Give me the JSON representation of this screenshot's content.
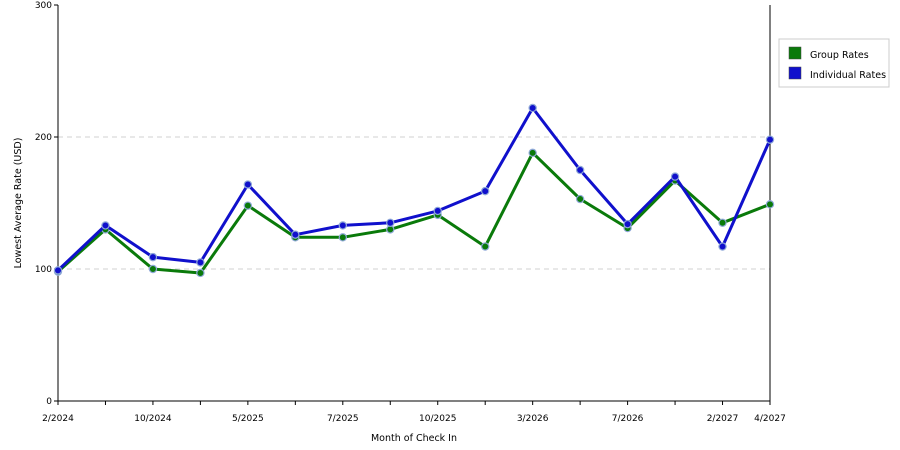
{
  "chart_data": {
    "type": "line",
    "xlabel": "Month of Check In",
    "ylabel": "Lowest Average Rate (USD)",
    "ylim": [
      0,
      300
    ],
    "yticks": [
      0,
      100,
      200,
      300
    ],
    "x_tick_labels": [
      "2/2024",
      "10/2024",
      "5/2025",
      "7/2025",
      "10/2025",
      "3/2026",
      "7/2026",
      "2/2027",
      "4/2027"
    ],
    "grid": "horizontal dashed",
    "legend_position": "right",
    "series": [
      {
        "name": "Group Rates",
        "color": "#0a7a0a",
        "values": [
          98,
          130,
          100,
          97,
          148,
          124,
          124,
          130,
          141,
          117,
          188,
          153,
          131,
          167,
          135,
          149
        ]
      },
      {
        "name": "Individual Rates",
        "color": "#1010cc",
        "values": [
          99,
          133,
          109,
          105,
          164,
          126,
          133,
          135,
          144,
          159,
          222,
          175,
          134,
          170,
          117,
          198
        ]
      }
    ]
  }
}
